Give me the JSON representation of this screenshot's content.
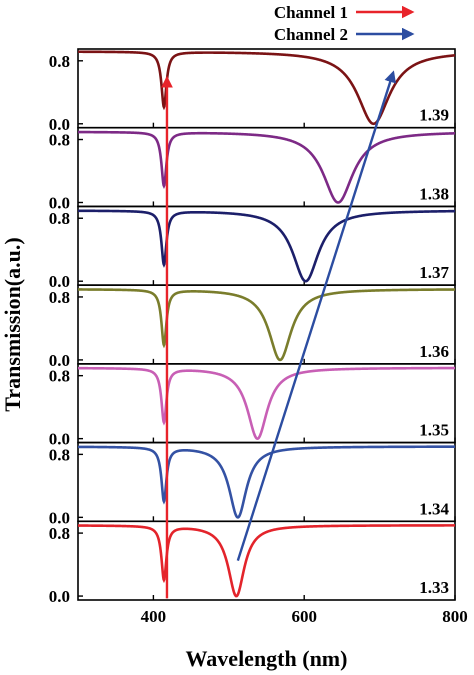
{
  "chart_data": {
    "type": "line",
    "xlabel": "Wavelength (nm)",
    "ylabel": "Transmission(a.u.)",
    "xlim": [
      300,
      800
    ],
    "ylim": [
      -0.05,
      0.95
    ],
    "x_ticks": [
      "400",
      "600",
      "800"
    ],
    "y_ticks": [
      "0.0",
      "0.8"
    ],
    "legend": [
      {
        "name": "Channel 1",
        "color": "#e8232a"
      },
      {
        "name": "Channel 2",
        "color": "#2c4da1"
      }
    ],
    "series": [
      {
        "name": "1.39",
        "color": "#7b1315",
        "baseline": 0.92,
        "dip1": {
          "x": 414,
          "y": 0.22,
          "width": 4
        },
        "dip2": {
          "x": 692,
          "y": 0.0,
          "width": 26
        }
      },
      {
        "name": "1.38",
        "color": "#7d2a86",
        "baseline": 0.9,
        "dip1": {
          "x": 414,
          "y": 0.22,
          "width": 4
        },
        "dip2": {
          "x": 645,
          "y": 0.0,
          "width": 24
        }
      },
      {
        "name": "1.37",
        "color": "#1c1f6a",
        "baseline": 0.9,
        "dip1": {
          "x": 414,
          "y": 0.22,
          "width": 4
        },
        "dip2": {
          "x": 602,
          "y": 0.0,
          "width": 21
        }
      },
      {
        "name": "1.36",
        "color": "#7a7d2c",
        "baseline": 0.9,
        "dip1": {
          "x": 414,
          "y": 0.2,
          "width": 4
        },
        "dip2": {
          "x": 568,
          "y": 0.0,
          "width": 18
        }
      },
      {
        "name": "1.35",
        "color": "#c85fb5",
        "baseline": 0.9,
        "dip1": {
          "x": 414,
          "y": 0.22,
          "width": 4
        },
        "dip2": {
          "x": 538,
          "y": 0.0,
          "width": 16
        }
      },
      {
        "name": "1.34",
        "color": "#3452a4",
        "baseline": 0.9,
        "dip1": {
          "x": 414,
          "y": 0.22,
          "width": 4
        },
        "dip2": {
          "x": 512,
          "y": 0.0,
          "width": 14
        }
      },
      {
        "name": "1.33",
        "color": "#e3242b",
        "baseline": 0.9,
        "dip1": {
          "x": 414,
          "y": 0.22,
          "width": 4
        },
        "dip2": {
          "x": 510,
          "y": 0.0,
          "width": 13
        }
      }
    ],
    "channel_arrows": [
      {
        "name": "Channel 1",
        "color": "#e8232a",
        "from": {
          "x": 418,
          "y": -0.03
        },
        "to": {
          "x": 418,
          "y": 0.58
        }
      },
      {
        "name": "Channel 2",
        "color": "#2c4da1",
        "from": {
          "x": 512,
          "y": 0.45
        },
        "to": {
          "x": 718,
          "y": 0.65
        }
      }
    ]
  }
}
